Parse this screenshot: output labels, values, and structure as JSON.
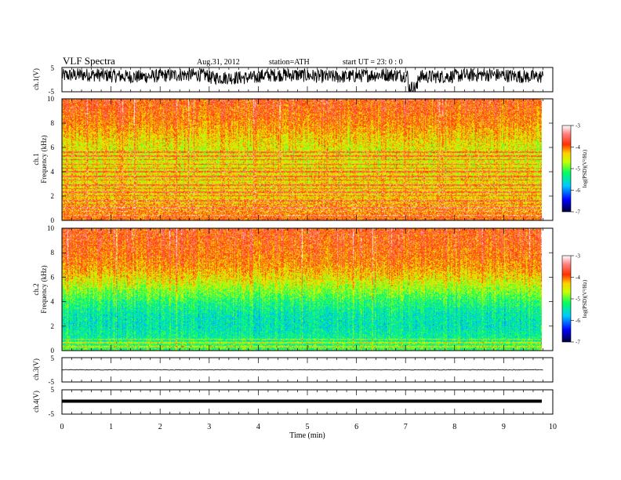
{
  "header": {
    "title": "VLF  Spectra",
    "date": "Aug.31, 2012",
    "station": "station=ATH",
    "start": "start  UT  =    23: 0  : 0"
  },
  "chart_data": {
    "type": "heatmap",
    "time_axis": {
      "label": "Time  (min)",
      "range": [
        0,
        10
      ],
      "ticks": [
        0,
        1,
        2,
        3,
        4,
        5,
        6,
        7,
        8,
        9,
        10
      ],
      "data_end": 9.8
    },
    "panels": [
      {
        "id": "ch1_waveform",
        "kind": "waveform",
        "ylabel": "ch.1(V)",
        "ylim": [
          -5,
          5
        ],
        "yticks": [
          "5",
          "-5"
        ],
        "style": "noisy trace filling approximately -4 to +5 V, with a dip near 7.1 min"
      },
      {
        "id": "ch1_spectrogram",
        "kind": "spectrogram",
        "ylabel_top": "ch.1",
        "ylabel": "Frequency  (kHz)",
        "ylim": [
          0,
          10
        ],
        "yticks": [
          "0",
          "2",
          "4",
          "6",
          "8",
          "10"
        ],
        "colorbar": {
          "label": "log(PSD)(V²/Hz)",
          "range": [
            -7,
            -3
          ],
          "ticks": [
            "-3",
            "-4",
            "-5",
            "-6",
            "-7"
          ]
        },
        "profile": {
          "freq_khz": [
            0,
            1,
            2,
            3,
            4,
            5,
            6,
            7,
            8,
            9,
            10
          ],
          "mean_log_psd": [
            -3.9,
            -4.2,
            -4.35,
            -4.4,
            -4.45,
            -4.5,
            -4.5,
            -4.3,
            -4.05,
            -3.9,
            -3.8
          ]
        }
      },
      {
        "id": "ch2_spectrogram",
        "kind": "spectrogram",
        "ylabel_top": "ch.2",
        "ylabel": "Frequency  (kHz)",
        "ylim": [
          0,
          10
        ],
        "yticks": [
          "0",
          "2",
          "4",
          "6",
          "8",
          "10"
        ],
        "colorbar": {
          "label": "log(PSD)(V²/Hz)",
          "range": [
            -7,
            -3
          ],
          "ticks": [
            "-3",
            "-4",
            "-5",
            "-6",
            "-7"
          ]
        },
        "profile": {
          "freq_khz": [
            0,
            1,
            2,
            3,
            4,
            5,
            6,
            7,
            8,
            9,
            10
          ],
          "mean_log_psd": [
            -5.1,
            -5.35,
            -5.5,
            -5.45,
            -5.2,
            -4.8,
            -4.4,
            -4.1,
            -3.95,
            -3.85,
            -3.8
          ]
        }
      },
      {
        "id": "ch3_waveform",
        "kind": "waveform",
        "ylabel": "ch.3(V)",
        "ylim": [
          -5,
          5
        ],
        "yticks": [
          "5",
          "-5"
        ],
        "style": "nearly flat thin trace at about 0 V"
      },
      {
        "id": "ch4_waveform",
        "kind": "waveform",
        "ylabel": "ch.4(V)",
        "ylim": [
          -5,
          5
        ],
        "yticks": [
          "5",
          "-5"
        ],
        "style": "flat thick band at about 0 V"
      }
    ],
    "grid": false,
    "legend": "colorbars at right of each spectrogram"
  },
  "colors": {
    "axis": "#000000",
    "trace": "#000000",
    "colormap": [
      "#00004a",
      "#0000ff",
      "#00ffff",
      "#00ff00",
      "#ffff00",
      "#ff8000",
      "#ff0000",
      "#ffffff"
    ]
  }
}
